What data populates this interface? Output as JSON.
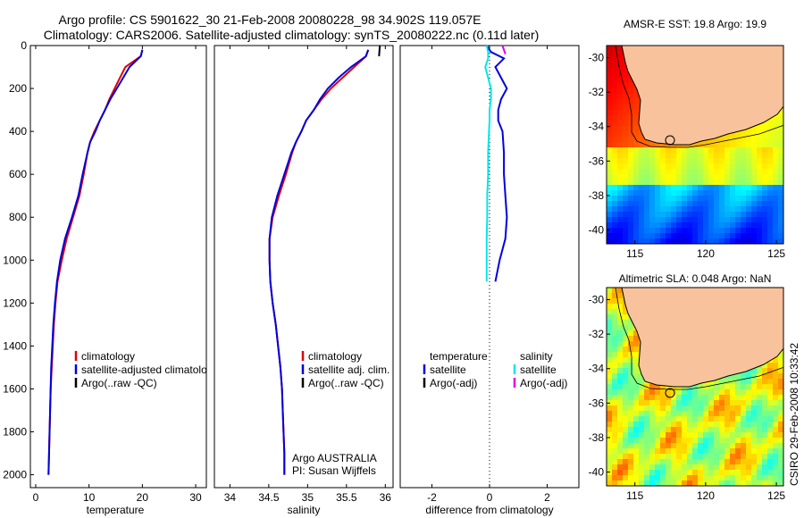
{
  "title": {
    "line1": "Argo profile: CS 5901622_30 21-Feb-2008 20080228_98 34.902S 119.057E",
    "line2": "Climatology: CARS2006. Satellite-adjusted climatology: synTS_20080222.nc (0.11d later)"
  },
  "side_label": "CSIRO 29-Feb-2008 10:33:42",
  "colors": {
    "climatology": "#e00000",
    "satellite": "#0000e0",
    "argo_temp": "#000000",
    "salinity_sat": "#00e8e8",
    "argo_sal": "#e000e0",
    "land": "#f8c29c",
    "zero_line": "#000000"
  },
  "chart_data": [
    {
      "type": "line",
      "id": "temperature",
      "xlabel": "temperature",
      "ylabel": "",
      "xlim": [
        -1,
        32
      ],
      "ylim": [
        2060,
        0
      ],
      "xticks": [
        0,
        10,
        20,
        30
      ],
      "yticks": [
        0,
        200,
        400,
        600,
        800,
        1000,
        1200,
        1400,
        1600,
        1800,
        2000
      ],
      "depth": [
        20,
        50,
        100,
        150,
        200,
        250,
        300,
        350,
        400,
        450,
        500,
        600,
        700,
        800,
        900,
        1000,
        1100,
        1200,
        1300,
        1400,
        1500,
        1600,
        1700,
        1800,
        1900,
        2000
      ],
      "series": [
        {
          "name": "climatology",
          "color": "#e00000",
          "values": [
            20.0,
            19.7,
            16.8,
            15.8,
            14.8,
            13.8,
            13.0,
            12.0,
            11.0,
            10.2,
            9.7,
            9.0,
            8.2,
            7.0,
            5.8,
            4.9,
            4.1,
            3.7,
            3.4,
            3.2,
            3.0,
            2.8,
            2.7,
            2.6,
            2.5,
            2.4
          ]
        },
        {
          "name": "satellite-adjusted climatology",
          "color": "#0000e0",
          "values": [
            20.0,
            19.7,
            17.6,
            16.4,
            15.2,
            14.0,
            13.0,
            12.0,
            11.2,
            10.2,
            9.7,
            8.8,
            8.0,
            6.8,
            5.5,
            4.6,
            4.0,
            3.6,
            3.3,
            3.1,
            2.9,
            2.8,
            2.7,
            2.6,
            2.5,
            2.4
          ]
        }
      ],
      "legend": [
        {
          "label": "climatology",
          "color": "#e00000"
        },
        {
          "label": "satellite-adjusted climatolo",
          "color": "#0000e0"
        },
        {
          "label": "Argo(..raw -QC)",
          "color": "#000000"
        }
      ]
    },
    {
      "type": "line",
      "id": "salinity",
      "xlabel": "salinity",
      "ylabel": "",
      "xlim": [
        33.8,
        36.1
      ],
      "ylim": [
        2060,
        0
      ],
      "xticks": [
        34,
        34.5,
        35,
        35.5,
        36
      ],
      "depth": [
        20,
        50,
        100,
        150,
        200,
        250,
        300,
        350,
        400,
        450,
        500,
        600,
        700,
        800,
        900,
        1000,
        1100,
        1200,
        1300,
        1400,
        1500,
        1600,
        1700,
        1800,
        1900,
        2000
      ],
      "series": [
        {
          "name": "climatology",
          "color": "#e00000",
          "values": [
            35.78,
            35.75,
            35.6,
            35.45,
            35.3,
            35.18,
            35.08,
            34.98,
            34.92,
            34.85,
            34.8,
            34.72,
            34.63,
            34.55,
            34.51,
            34.51,
            34.52,
            34.55,
            34.59,
            34.62,
            34.65,
            34.67,
            34.68,
            34.69,
            34.7,
            34.7
          ]
        },
        {
          "name": "satellite adj. clim.",
          "color": "#0000e0",
          "values": [
            35.78,
            35.75,
            35.56,
            35.4,
            35.26,
            35.16,
            35.08,
            34.98,
            34.92,
            34.85,
            34.79,
            34.7,
            34.61,
            34.54,
            34.51,
            34.51,
            34.52,
            34.55,
            34.59,
            34.62,
            34.65,
            34.67,
            34.68,
            34.69,
            34.7,
            34.7
          ]
        },
        {
          "name": "Argo(..raw -QC)",
          "color": "#000000",
          "values": [
            35.93,
            35.92
          ]
        }
      ],
      "argo_depth": [
        0,
        50
      ],
      "legend": [
        {
          "label": "climatology",
          "color": "#e00000"
        },
        {
          "label": "satellite adj. clim.",
          "color": "#0000e0"
        },
        {
          "label": "Argo(..raw -QC)",
          "color": "#000000"
        }
      ],
      "annotation": [
        "Argo AUSTRALIA",
        "PI: Susan Wijffels"
      ]
    },
    {
      "type": "line",
      "id": "difference",
      "xlabel": "difference from climatology",
      "ylabel": "",
      "xlim": [
        -3.1,
        3.1
      ],
      "ylim": [
        2060,
        0
      ],
      "xticks": [
        -2,
        0,
        2
      ],
      "depth": [
        0,
        30,
        60,
        100,
        150,
        200,
        250,
        300,
        350,
        400,
        500,
        600,
        700,
        800,
        900,
        1000,
        1100
      ],
      "series": [
        {
          "name": "temperature satellite",
          "color": "#0000e0",
          "values": [
            -0.1,
            0.05,
            0.5,
            0.2,
            0.4,
            0.6,
            0.4,
            0.3,
            0.3,
            0.45,
            0.5,
            0.5,
            0.55,
            0.6,
            0.55,
            0.35,
            0.2
          ]
        },
        {
          "name": "salinity satellite",
          "color": "#00e8e8",
          "values": [
            -0.1,
            -0.05,
            -0.05,
            -0.15,
            -0.05,
            0.05,
            0.05,
            0.0,
            0.0,
            -0.02,
            -0.05,
            -0.05,
            -0.08,
            -0.08,
            -0.1,
            -0.1,
            -0.1
          ]
        },
        {
          "name": "salinity Argo(-adj)",
          "color": "#e000e0",
          "values": [
            0.45,
            0.5,
            0.55
          ]
        }
      ],
      "argo_depth": [
        0,
        20,
        40
      ],
      "legend_temperature_title": "temperature",
      "legend_salinity_title": "salinity",
      "legend": [
        {
          "label": "satellite",
          "color": "#0000e0"
        },
        {
          "label": "Argo(-adj)",
          "color": "#000000"
        },
        {
          "label": "satellite",
          "color": "#00e8e8"
        },
        {
          "label": "Argo(-adj)",
          "color": "#e000e0"
        }
      ]
    },
    {
      "type": "heatmap",
      "id": "sst_map",
      "title": "AMSR-E SST: 19.8 Argo: 19.9",
      "xlim": [
        113,
        125.5
      ],
      "ylim": [
        -40.8,
        -29.3
      ],
      "xticks": [
        115,
        120,
        125
      ],
      "yticks": [
        -30,
        -32,
        -34,
        -36,
        -38,
        -40
      ]
    },
    {
      "type": "heatmap",
      "id": "sla_map",
      "title": "Altimetric SLA: 0.048 Argo: NaN",
      "xlim": [
        113,
        125.5
      ],
      "ylim": [
        -40.8,
        -29.3
      ],
      "xticks": [
        115,
        120,
        125
      ],
      "yticks": [
        -30,
        -32,
        -34,
        -36,
        -38,
        -40
      ]
    }
  ]
}
